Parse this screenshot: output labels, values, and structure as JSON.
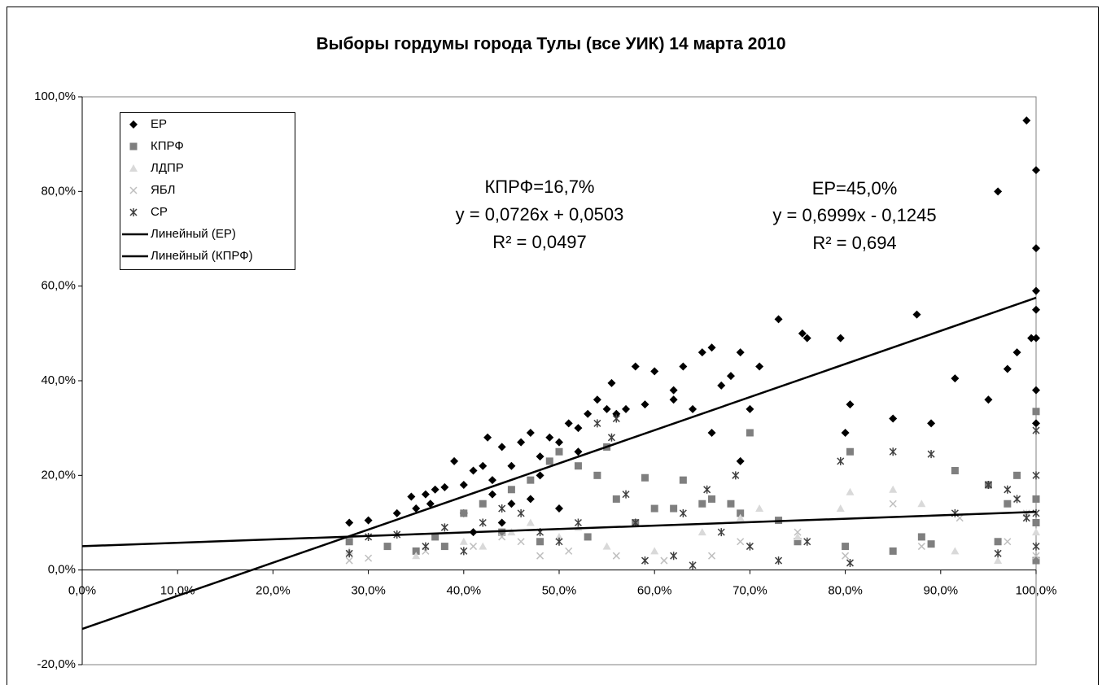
{
  "chart_data": {
    "type": "scatter",
    "title": "Выборы гордумы города Тулы (все УИК) 14 марта 2010",
    "xlim": [
      0,
      100
    ],
    "ylim": [
      -20,
      100
    ],
    "xticks": [
      {
        "value": 0,
        "label": "0,0%"
      },
      {
        "value": 10,
        "label": "10,0%"
      },
      {
        "value": 20,
        "label": "20,0%"
      },
      {
        "value": 30,
        "label": "30,0%"
      },
      {
        "value": 40,
        "label": "40,0%"
      },
      {
        "value": 50,
        "label": "50,0%"
      },
      {
        "value": 60,
        "label": "60,0%"
      },
      {
        "value": 70,
        "label": "70,0%"
      },
      {
        "value": 80,
        "label": "80,0%"
      },
      {
        "value": 90,
        "label": "90,0%"
      },
      {
        "value": 100,
        "label": "100,0%"
      }
    ],
    "yticks": [
      {
        "value": -20,
        "label": "-20,0%"
      },
      {
        "value": 0,
        "label": "0,0%"
      },
      {
        "value": 20,
        "label": "20,0%"
      },
      {
        "value": 40,
        "label": "40,0%"
      },
      {
        "value": 60,
        "label": "60,0%"
      },
      {
        "value": 80,
        "label": "80,0%"
      },
      {
        "value": 100,
        "label": "100,0%"
      }
    ],
    "grid": false,
    "legend": "top-left",
    "series": [
      {
        "name": "ЕР",
        "marker": "diamond",
        "color": "#000000",
        "x": [
          28,
          30,
          33,
          34.5,
          35,
          36,
          36.5,
          37,
          38,
          39,
          40,
          41,
          42,
          42.5,
          43,
          44,
          45,
          46,
          47,
          48,
          49,
          50,
          51,
          52,
          53,
          54,
          55,
          55.5,
          56,
          57,
          58,
          59,
          60,
          62,
          63,
          64,
          65,
          66,
          66,
          67,
          68,
          69,
          70,
          71,
          73,
          75.5,
          76,
          79.5,
          80,
          80.5,
          85,
          87.5,
          89,
          91.5,
          95,
          96,
          97,
          98,
          99,
          99.5,
          100,
          100,
          100,
          100,
          100,
          100,
          100,
          69,
          62,
          50,
          45,
          40,
          43,
          48,
          52,
          47,
          44,
          41
        ],
        "values": [
          10,
          10.5,
          12,
          15.5,
          13,
          16,
          14,
          17,
          17.5,
          23,
          18,
          21,
          22,
          28,
          19,
          26,
          22,
          27,
          29,
          24,
          28,
          27,
          31,
          30,
          33,
          36,
          34,
          39.5,
          33,
          34,
          43,
          35,
          42,
          38,
          43,
          34,
          46,
          47,
          29,
          39,
          41,
          46,
          34,
          43,
          53,
          50,
          49,
          49,
          29,
          35,
          32,
          54,
          31,
          40.5,
          36,
          80,
          42.5,
          46,
          95,
          49,
          84.5,
          68,
          59,
          55,
          49,
          38,
          31,
          23,
          36,
          13,
          14,
          12,
          16,
          20,
          25,
          15,
          10,
          8
        ]
      },
      {
        "name": "КПРФ",
        "marker": "square",
        "color": "#7f7f7f",
        "x": [
          28,
          32,
          37,
          40,
          42,
          45,
          47,
          49,
          50,
          52,
          54,
          55,
          56,
          58,
          59,
          60,
          62,
          63,
          65,
          66,
          68,
          69,
          70,
          73,
          75,
          80,
          80.5,
          85,
          88,
          89,
          91.5,
          95,
          96,
          97,
          98,
          100,
          100,
          100,
          100,
          44,
          48,
          53,
          38,
          35
        ],
        "values": [
          6,
          5,
          7,
          12,
          14,
          17,
          19,
          23,
          25,
          22,
          20,
          26,
          15,
          10,
          19.5,
          13,
          13,
          19,
          14,
          15,
          14,
          12,
          29,
          10.5,
          6,
          5,
          25,
          4,
          7,
          5.5,
          21,
          18,
          6,
          14,
          20,
          33.5,
          15,
          10,
          2,
          8,
          6,
          7,
          5,
          4
        ]
      },
      {
        "name": "ЛДПР",
        "marker": "triangle",
        "color": "#d9d9d9",
        "x": [
          28,
          35,
          40,
          45,
          50,
          55,
          60,
          65,
          69,
          71,
          75,
          79.5,
          80.5,
          85,
          88,
          91.5,
          96,
          99,
          100,
          47,
          42,
          52
        ],
        "values": [
          4,
          3,
          6,
          8,
          7,
          5,
          4,
          8,
          11,
          13,
          7,
          13,
          16.5,
          17,
          14,
          4,
          2,
          12,
          8,
          10,
          5,
          9
        ]
      },
      {
        "name": "ЯБЛ",
        "marker": "cross",
        "color": "#bfbfbf",
        "x": [
          28,
          30,
          36,
          41,
          46,
          51,
          56,
          61,
          66,
          69,
          75,
          80,
          85,
          88,
          92,
          97,
          99,
          100,
          44,
          48
        ],
        "values": [
          2,
          2.5,
          4,
          5,
          6,
          4,
          3,
          2,
          3,
          6,
          8,
          3,
          14,
          5,
          11,
          6,
          12,
          3,
          7,
          3
        ]
      },
      {
        "name": "СР",
        "marker": "asterisk",
        "color": "#404040",
        "x": [
          28,
          30,
          33,
          36,
          38,
          40,
          42,
          44,
          46,
          48,
          50,
          52,
          54,
          55.5,
          56,
          57,
          58,
          59,
          62,
          63,
          64,
          65.5,
          67,
          68.5,
          70,
          73,
          76,
          79.5,
          80.5,
          85,
          89,
          91.5,
          95,
          96,
          97,
          98,
          99,
          100,
          100,
          100,
          100
        ],
        "values": [
          3.5,
          7,
          7.5,
          5,
          9,
          4,
          10,
          13,
          12,
          8,
          6,
          10,
          31,
          28,
          32,
          16,
          10,
          2,
          3,
          12,
          1,
          17,
          8,
          20,
          5,
          2,
          6,
          23,
          1.5,
          25,
          24.5,
          12,
          18,
          3.5,
          17,
          15,
          11,
          20,
          29.5,
          12,
          5
        ]
      }
    ],
    "trendlines": [
      {
        "name": "Линейный (ЕР)",
        "slope": 0.6999,
        "intercept": -12.45,
        "color": "#000000"
      },
      {
        "name": "Линейный (КПРФ)",
        "slope": 0.0726,
        "intercept": 5.03,
        "color": "#000000"
      }
    ],
    "annotations": [
      "КПРФ=16,7%",
      "y = 0,0726x + 0,0503",
      "R² = 0,0497",
      "ЕР=45,0%",
      "y = 0,6999x - 0,1245",
      "R² = 0,694"
    ]
  }
}
